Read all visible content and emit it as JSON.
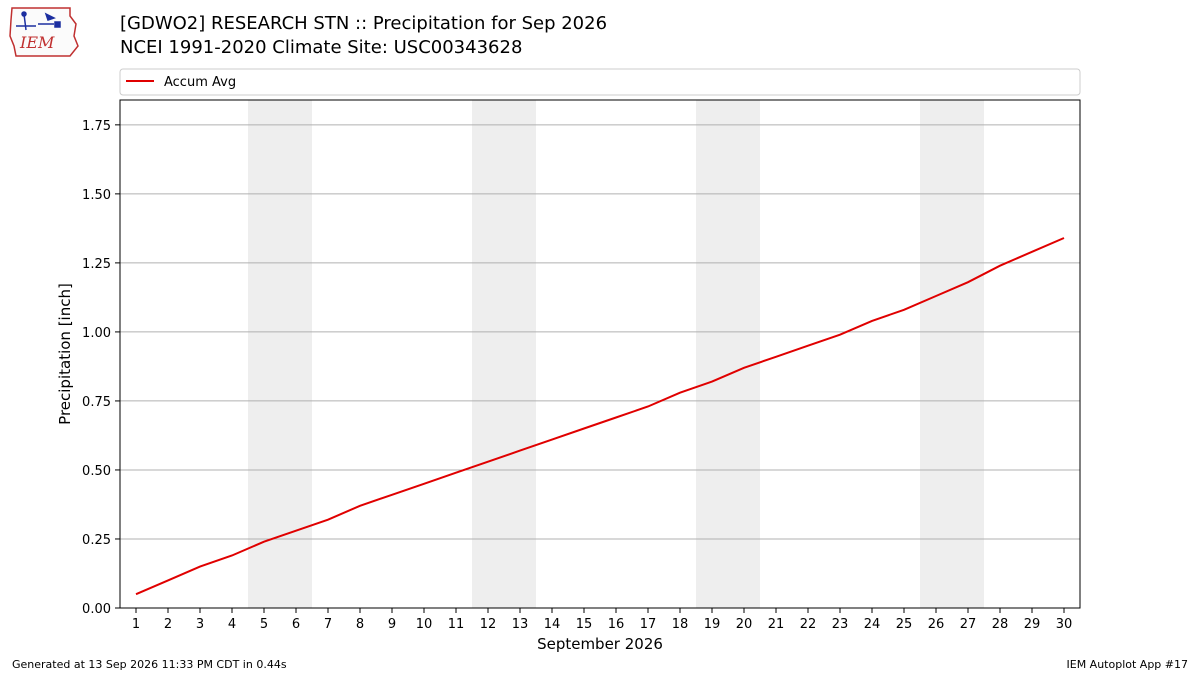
{
  "header": {
    "title_line1": "[GDWO2] RESEARCH STN :: Precipitation for Sep 2026",
    "title_line2": "NCEI 1991-2020 Climate Site: USC00343628",
    "logo_text": "IEM"
  },
  "footer": {
    "generated": "Generated at 13 Sep 2026 11:33 PM CDT in 0.44s",
    "app": "IEM Autoplot App #17"
  },
  "chart_data": {
    "type": "line",
    "xlabel": "September 2026",
    "ylabel": "Precipitation [inch]",
    "ylim": [
      0,
      1.84
    ],
    "xlim": [
      0.5,
      30.5
    ],
    "grid": "horizontal",
    "legend_position": "top",
    "yticks": [
      0.0,
      0.25,
      0.5,
      0.75,
      1.0,
      1.25,
      1.5,
      1.75
    ],
    "ytick_labels": [
      "0.00",
      "0.25",
      "0.50",
      "0.75",
      "1.00",
      "1.25",
      "1.50",
      "1.75"
    ],
    "x": [
      1,
      2,
      3,
      4,
      5,
      6,
      7,
      8,
      9,
      10,
      11,
      12,
      13,
      14,
      15,
      16,
      17,
      18,
      19,
      20,
      21,
      22,
      23,
      24,
      25,
      26,
      27,
      28,
      29,
      30
    ],
    "x_labels": [
      "1",
      "2",
      "3",
      "4",
      "5",
      "6",
      "7",
      "8",
      "9",
      "10",
      "11",
      "12",
      "13",
      "14",
      "15",
      "16",
      "17",
      "18",
      "19",
      "20",
      "21",
      "22",
      "23",
      "24",
      "25",
      "26",
      "27",
      "28",
      "29",
      "30"
    ],
    "weekend_bands": [
      [
        4.5,
        6.5
      ],
      [
        11.5,
        13.5
      ],
      [
        18.5,
        20.5
      ],
      [
        25.5,
        27.5
      ]
    ],
    "series": [
      {
        "name": "Accum Avg",
        "color": "#e00000",
        "values": [
          0.05,
          0.1,
          0.15,
          0.19,
          0.24,
          0.28,
          0.32,
          0.37,
          0.41,
          0.45,
          0.49,
          0.53,
          0.57,
          0.61,
          0.65,
          0.69,
          0.73,
          0.78,
          0.82,
          0.87,
          0.91,
          0.95,
          0.99,
          1.04,
          1.08,
          1.13,
          1.18,
          1.24,
          1.29,
          1.34
        ]
      }
    ]
  }
}
